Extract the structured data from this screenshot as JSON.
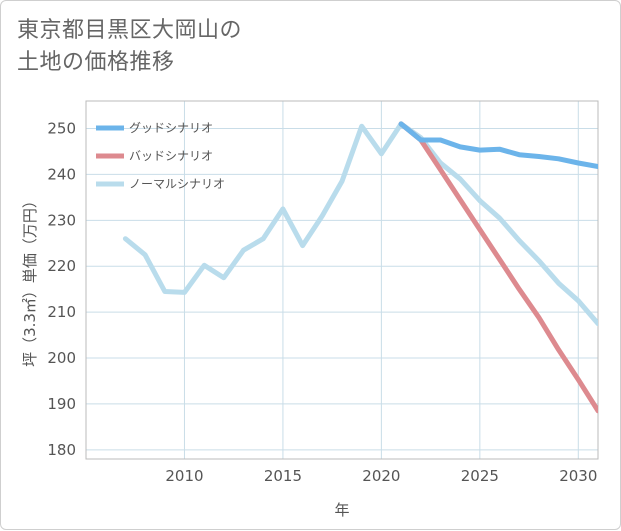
{
  "title": {
    "line1": "東京都目黒区大岡山の",
    "line2": "土地の価格推移"
  },
  "chart_data": {
    "type": "line",
    "xlabel": "年",
    "ylabel": "坪（3.3㎡）単価（万円）",
    "xlim": [
      2005,
      2031
    ],
    "ylim": [
      178,
      256
    ],
    "x_ticks": [
      2010,
      2015,
      2020,
      2025,
      2030
    ],
    "y_ticks": [
      180,
      190,
      200,
      210,
      220,
      230,
      240,
      250
    ],
    "x_tick_labels": [
      "2010",
      "2015",
      "2020",
      "2025",
      "2030"
    ],
    "y_tick_labels": [
      "180",
      "190",
      "200",
      "210",
      "220",
      "230",
      "240",
      "250"
    ],
    "grid": true,
    "legend_position": "top-left",
    "series": [
      {
        "name": "グッドシナリオ",
        "color": "#6cb4ea",
        "x": [
          2021,
          2022,
          2023,
          2024,
          2025,
          2026,
          2027,
          2028,
          2029,
          2030,
          2031
        ],
        "values": [
          251,
          247.5,
          247.5,
          246,
          245.3,
          245.5,
          244.3,
          243.9,
          243.4,
          242.5,
          241.7
        ]
      },
      {
        "name": "バッドシナリオ",
        "color": "#dd8a8f",
        "x": [
          2021,
          2022,
          2023,
          2024,
          2025,
          2026,
          2027,
          2028,
          2029,
          2030,
          2031
        ],
        "values": [
          251,
          247.5,
          241,
          234.5,
          228,
          221.5,
          215,
          208.8,
          201.8,
          195.3,
          188.5
        ]
      },
      {
        "name": "ノーマルシナリオ",
        "color": "#b9dcec",
        "x": [
          2007,
          2008,
          2009,
          2010,
          2011,
          2012,
          2013,
          2014,
          2015,
          2016,
          2017,
          2018,
          2019,
          2020,
          2021,
          2022,
          2023,
          2024,
          2025,
          2026,
          2027,
          2028,
          2029,
          2030,
          2031
        ],
        "values": [
          226,
          222.5,
          214.5,
          214.3,
          220.2,
          217.5,
          223.5,
          226,
          232.5,
          224.5,
          231,
          238.5,
          250.5,
          244.5,
          251,
          248,
          242.5,
          239,
          234.3,
          230.5,
          225.6,
          221.2,
          216.3,
          212.5,
          207.5
        ]
      }
    ]
  }
}
